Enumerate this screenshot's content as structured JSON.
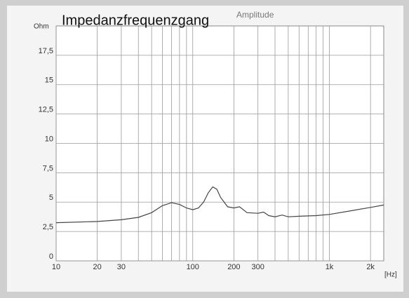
{
  "chart_data": {
    "type": "line",
    "title": "Impedanzfrequenzgang",
    "subtitle": "Amplitude",
    "y_label": "Ohm",
    "x_label": "[Hz]",
    "log_x": true,
    "grid": true,
    "xlim": [
      10,
      2500
    ],
    "ylim": [
      0,
      20
    ],
    "xticks": [
      10,
      20,
      30,
      100,
      200,
      300,
      {
        "value": 1000,
        "label": "1k"
      },
      {
        "value": 2000,
        "label": "2k"
      }
    ],
    "xgrid": [
      40,
      50,
      60,
      70,
      80,
      90,
      400,
      500,
      600,
      700,
      800,
      900
    ],
    "yticks": [
      0,
      {
        "value": 2.5,
        "label": "2,5"
      },
      5,
      {
        "value": 7.5,
        "label": "7,5"
      },
      10,
      {
        "value": 12.5,
        "label": "12,5"
      },
      15,
      {
        "value": 17.5,
        "label": "17,5"
      }
    ],
    "series": [
      {
        "color": "#444444",
        "x": [
          10,
          20,
          30,
          40,
          50,
          60,
          70,
          80,
          90,
          100,
          110,
          120,
          130,
          140,
          150,
          160,
          180,
          200,
          220,
          250,
          300,
          330,
          360,
          400,
          450,
          500,
          600,
          800,
          1000,
          1500,
          2000,
          2500
        ],
        "values": [
          3.25,
          3.35,
          3.5,
          3.7,
          4.1,
          4.7,
          4.95,
          4.8,
          4.5,
          4.35,
          4.5,
          5.0,
          5.8,
          6.3,
          6.1,
          5.4,
          4.6,
          4.5,
          4.6,
          4.1,
          4.05,
          4.15,
          3.85,
          3.75,
          3.9,
          3.75,
          3.8,
          3.85,
          3.95,
          4.3,
          4.55,
          4.75
        ]
      }
    ]
  }
}
